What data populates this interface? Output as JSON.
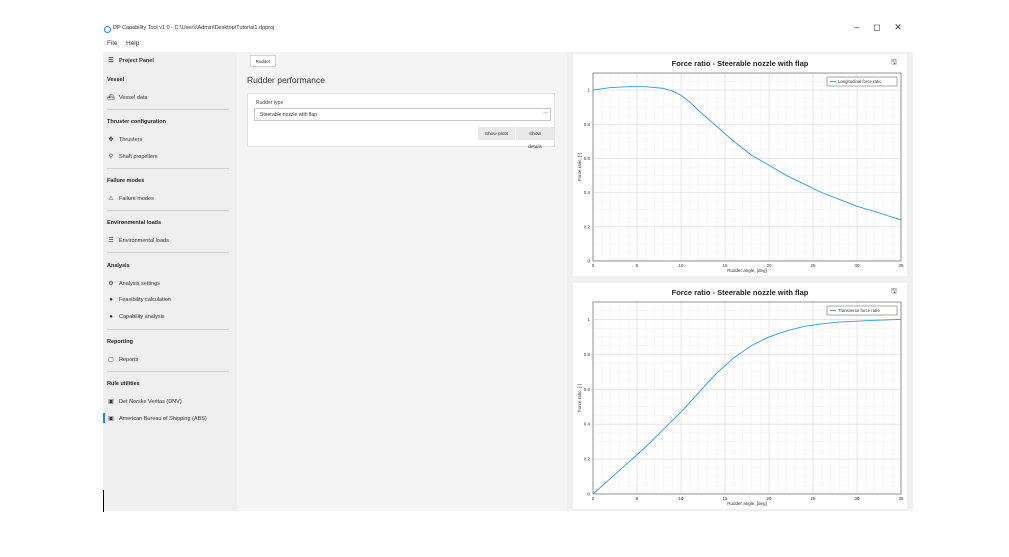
{
  "window": {
    "title": "DP Capability Tool v1.0 - C:\\Users\\Admin\\Desktop\\Tutorial1.dpproj",
    "minimize": "–",
    "maximize": "◻",
    "close": "✕"
  },
  "menu": {
    "file": "File",
    "help": "Help"
  },
  "left_panel": {
    "project_panel": "Project Panel",
    "vessel_header": "Vessel",
    "vessel_data": "Vessel data",
    "thruster_header": "Thruster configuration",
    "thrusters": "Thrusters",
    "shaft_propellers": "Shaft propellers",
    "failure_header": "Failure modes",
    "failure_modes": "Failure modes",
    "env_header": "Environmental loads",
    "env_loads": "Environmental loads",
    "analysis_header": "Analysis",
    "analysis_settings": "Analysis settings",
    "feasibility": "Feasibility calculation",
    "capability": "Capability analysis",
    "reporting_header": "Reporting",
    "reports": "Reports",
    "rule_header": "Rule utilities",
    "dnv": "Det Norske Veritas (DNV)",
    "abs": "American Bureau of Shipping (ABS)"
  },
  "center": {
    "tab": "Rudder",
    "title": "Rudder performance",
    "rudder_type_label": "Rudder type",
    "rudder_type_value": "Steerable nozzle with flap",
    "show_plots": "Show plots",
    "show_details": "Show details"
  },
  "colors": {
    "series": "#2e9bdc",
    "accent": "#1e88e5"
  },
  "chart_data": [
    {
      "type": "line",
      "title": "Force ratio - Steerable nozzle with flap",
      "xlabel": "Rudder angle, [deg]",
      "ylabel": "Force ratio, [-]",
      "xlim": [
        0,
        35
      ],
      "ylim": [
        0,
        1.1
      ],
      "xticks": [
        0,
        5,
        10,
        15,
        20,
        25,
        30,
        35
      ],
      "yticks": [
        0,
        0.2,
        0.4,
        0.6,
        0.8,
        1
      ],
      "grid": true,
      "legend_position": "top-right",
      "series": [
        {
          "name": "Longitudinal force ratio",
          "x": [
            0,
            2,
            4,
            6,
            8,
            9,
            10,
            11,
            12,
            14,
            16,
            18,
            20,
            22,
            24,
            26,
            28,
            30,
            32,
            35
          ],
          "y": [
            1.0,
            1.015,
            1.02,
            1.02,
            1.01,
            0.995,
            0.97,
            0.93,
            0.88,
            0.79,
            0.7,
            0.62,
            0.56,
            0.5,
            0.45,
            0.4,
            0.36,
            0.32,
            0.29,
            0.24
          ]
        }
      ]
    },
    {
      "type": "line",
      "title": "Force ratio - Steerable nozzle with flap",
      "xlabel": "Rudder angle, [deg]",
      "ylabel": "Force ratio, [-]",
      "xlim": [
        0,
        35
      ],
      "ylim": [
        0,
        1.1
      ],
      "xticks": [
        0,
        5,
        10,
        15,
        20,
        25,
        30,
        35
      ],
      "yticks": [
        0,
        0.2,
        0.4,
        0.6,
        0.8,
        1
      ],
      "grid": true,
      "legend_position": "top-right",
      "series": [
        {
          "name": "Transverse force ratio",
          "x": [
            0,
            2,
            4,
            6,
            8,
            10,
            12,
            14,
            16,
            18,
            20,
            22,
            24,
            26,
            28,
            30,
            32,
            35
          ],
          "y": [
            0,
            0.09,
            0.18,
            0.27,
            0.37,
            0.47,
            0.58,
            0.69,
            0.78,
            0.85,
            0.9,
            0.935,
            0.96,
            0.975,
            0.985,
            0.99,
            0.995,
            1.0
          ]
        }
      ]
    }
  ]
}
